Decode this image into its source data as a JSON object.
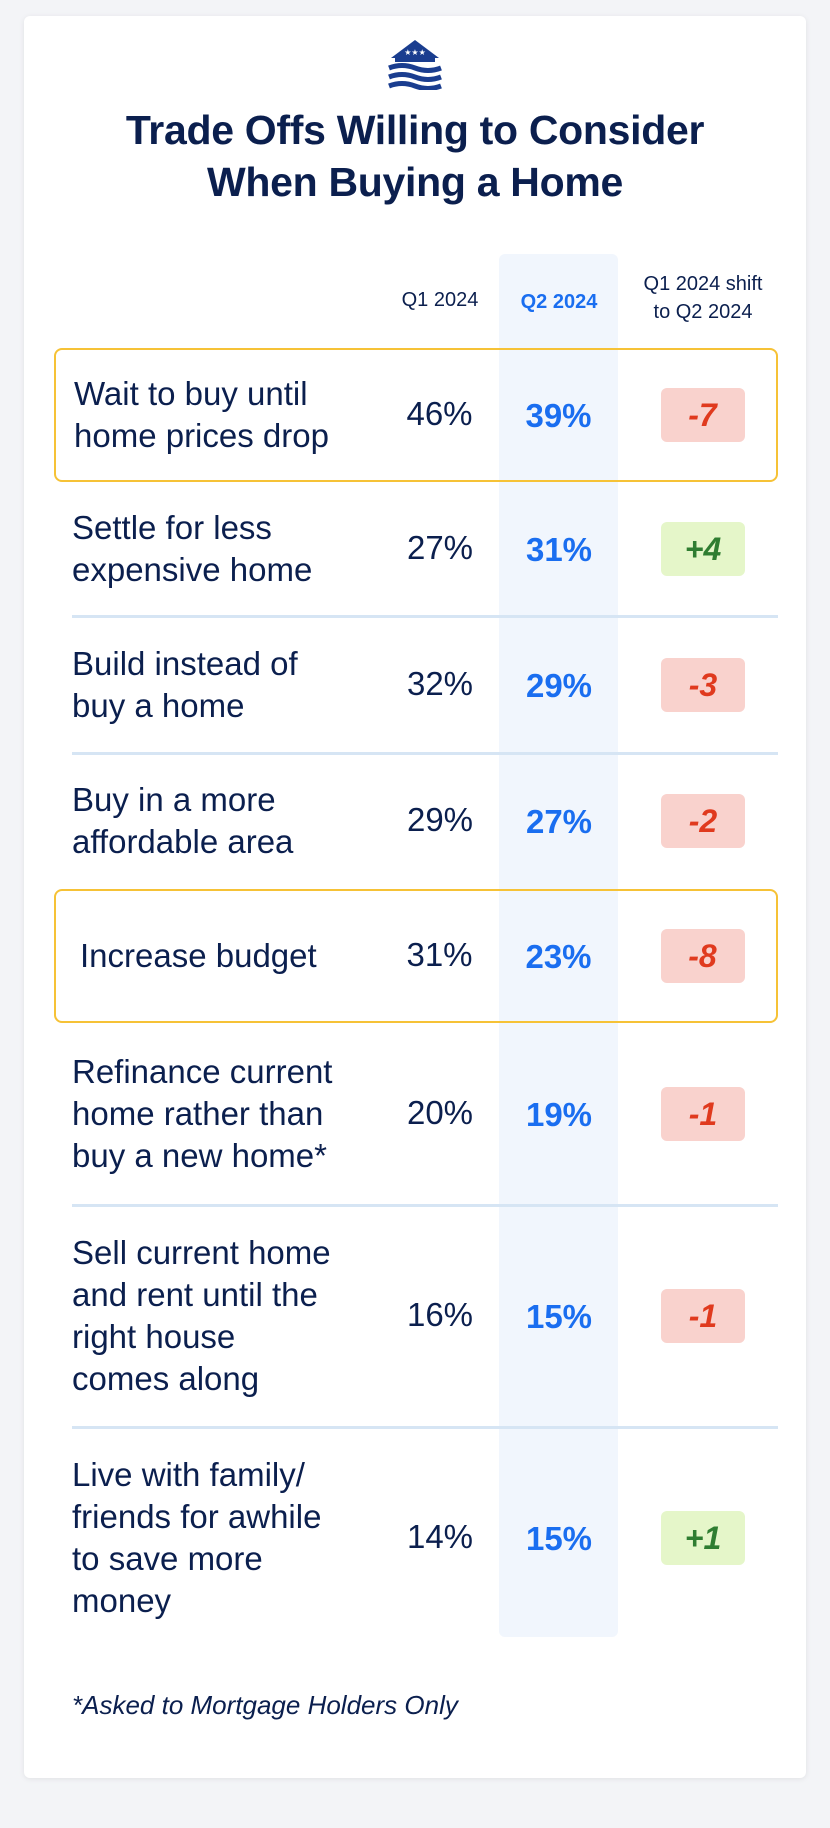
{
  "title_line1": "Trade Offs Willing to Consider",
  "title_line2": "When Buying a Home",
  "chart_data": {
    "type": "table",
    "columns": [
      "Q1 2024",
      "Q2 2024",
      "Q1 2024 shift to Q2 2024"
    ],
    "header_shift_line1": "Q1 2024 shift",
    "header_shift_line2": "to Q2 2024",
    "rows": [
      {
        "label": [
          "Wait to buy until",
          "home prices drop"
        ],
        "q1": "46%",
        "q2": "39%",
        "shift": "-7",
        "highlight": true
      },
      {
        "label": [
          "Settle for less",
          "expensive home"
        ],
        "q1": "27%",
        "q2": "31%",
        "shift": "+4",
        "highlight": false
      },
      {
        "label": [
          "Build instead of",
          "buy a home"
        ],
        "q1": "32%",
        "q2": "29%",
        "shift": "-3",
        "highlight": false
      },
      {
        "label": [
          "Buy in a more",
          "affordable area"
        ],
        "q1": "29%",
        "q2": "27%",
        "shift": "-2",
        "highlight": false
      },
      {
        "label": [
          "Increase budget"
        ],
        "q1": "31%",
        "q2": "23%",
        "shift": "-8",
        "highlight": true
      },
      {
        "label": [
          "Refinance current",
          "home rather than",
          "buy a new home*"
        ],
        "q1": "20%",
        "q2": "19%",
        "shift": "-1",
        "highlight": false
      },
      {
        "label": [
          "Sell current home",
          "and rent until the",
          "right house",
          "comes along"
        ],
        "q1": "16%",
        "q2": "15%",
        "shift": "-1",
        "highlight": false
      },
      {
        "label": [
          "Live with family/",
          "friends for awhile",
          "to save more",
          "money"
        ],
        "q1": "14%",
        "q2": "15%",
        "shift": "+1",
        "highlight": false
      }
    ]
  },
  "footnote": "*Asked to Mortgage Holders Only",
  "colors": {
    "highlight_border": "#f6c236",
    "q2_accent": "#1a6ef0",
    "negative": "#e03a1e",
    "positive": "#2f7d31"
  }
}
